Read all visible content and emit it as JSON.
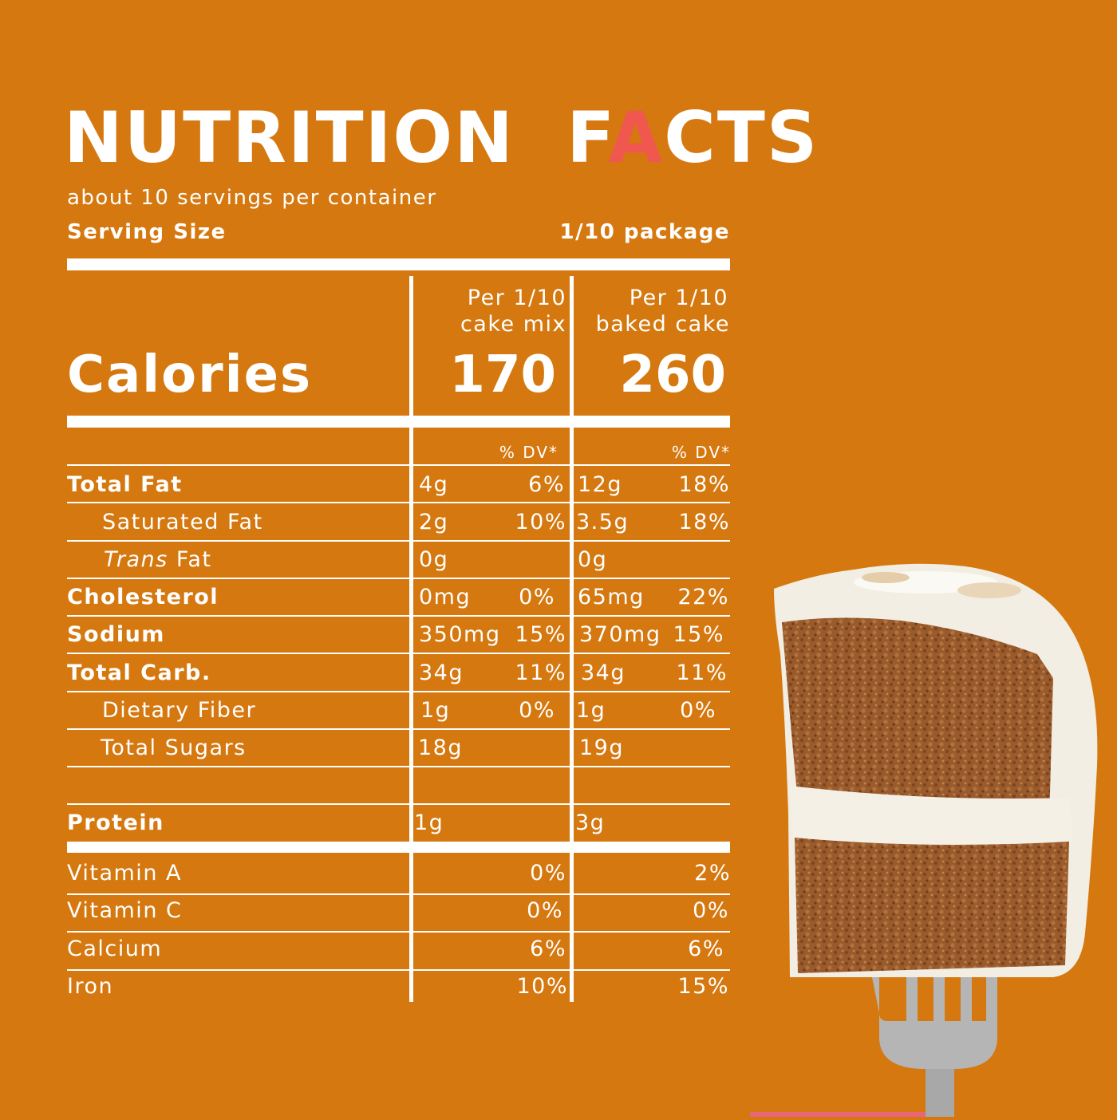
{
  "title": {
    "word1": "NUTRITION",
    "word2_a": "F",
    "word2_accent": "A",
    "word2_b": "CTS"
  },
  "servings_per_container": "about 10 servings per container",
  "serving_size": {
    "label": "Serving Size",
    "value": "1/10 package"
  },
  "columns": {
    "mix": {
      "line1": "Per 1/10",
      "line2": "cake mix"
    },
    "baked": {
      "line1": "Per 1/10",
      "line2": "baked cake"
    }
  },
  "calories": {
    "label": "Calories",
    "mix": "170",
    "baked": "260"
  },
  "dv_header": {
    "mix": "% DV*",
    "baked": "% DV*"
  },
  "nutrients": [
    {
      "label": "Total Fat",
      "mix_amt": "4g",
      "mix_dv": "6%",
      "baked_amt": "12g",
      "baked_dv": "18%"
    },
    {
      "label": "Saturated Fat",
      "mix_amt": "2g",
      "mix_dv": "10%",
      "baked_amt": "3.5g",
      "baked_dv": "18%"
    },
    {
      "label_italic": "Trans",
      "label_rest": " Fat",
      "mix_amt": "0g",
      "mix_dv": "",
      "baked_amt": "0g",
      "baked_dv": ""
    },
    {
      "label": "Cholesterol",
      "mix_amt": "0mg",
      "mix_dv": "0%",
      "baked_amt": "65mg",
      "baked_dv": "22%"
    },
    {
      "label": "Sodium",
      "mix_amt": "350mg",
      "mix_dv": "15%",
      "baked_amt": "370mg",
      "baked_dv": "15%"
    },
    {
      "label": "Total Carb.",
      "mix_amt": "34g",
      "mix_dv": "11%",
      "baked_amt": "34g",
      "baked_dv": "11%"
    },
    {
      "label": "Dietary Fiber",
      "mix_amt": "1g",
      "mix_dv": "0%",
      "baked_amt": "1g",
      "baked_dv": "0%"
    },
    {
      "label": "Total Sugars",
      "mix_amt": "18g",
      "mix_dv": "",
      "baked_amt": "19g",
      "baked_dv": ""
    },
    {
      "label": "Protein",
      "mix_amt": "1g",
      "mix_dv": "",
      "baked_amt": "3g",
      "baked_dv": ""
    }
  ],
  "vitamins": [
    {
      "label": "Vitamin A",
      "mix_dv": "0%",
      "baked_dv": "2%"
    },
    {
      "label": "Vitamin C",
      "mix_dv": "0%",
      "baked_dv": "0%"
    },
    {
      "label": "Calcium",
      "mix_dv": "6%",
      "baked_dv": "6%"
    },
    {
      "label": "Iron",
      "mix_dv": "10%",
      "baked_dv": "15%"
    }
  ],
  "colors": {
    "background": "#D5780F",
    "text": "#FFFFFF",
    "accent": "#F0584F"
  },
  "illustration": "carrot-cake-slice-on-fork"
}
